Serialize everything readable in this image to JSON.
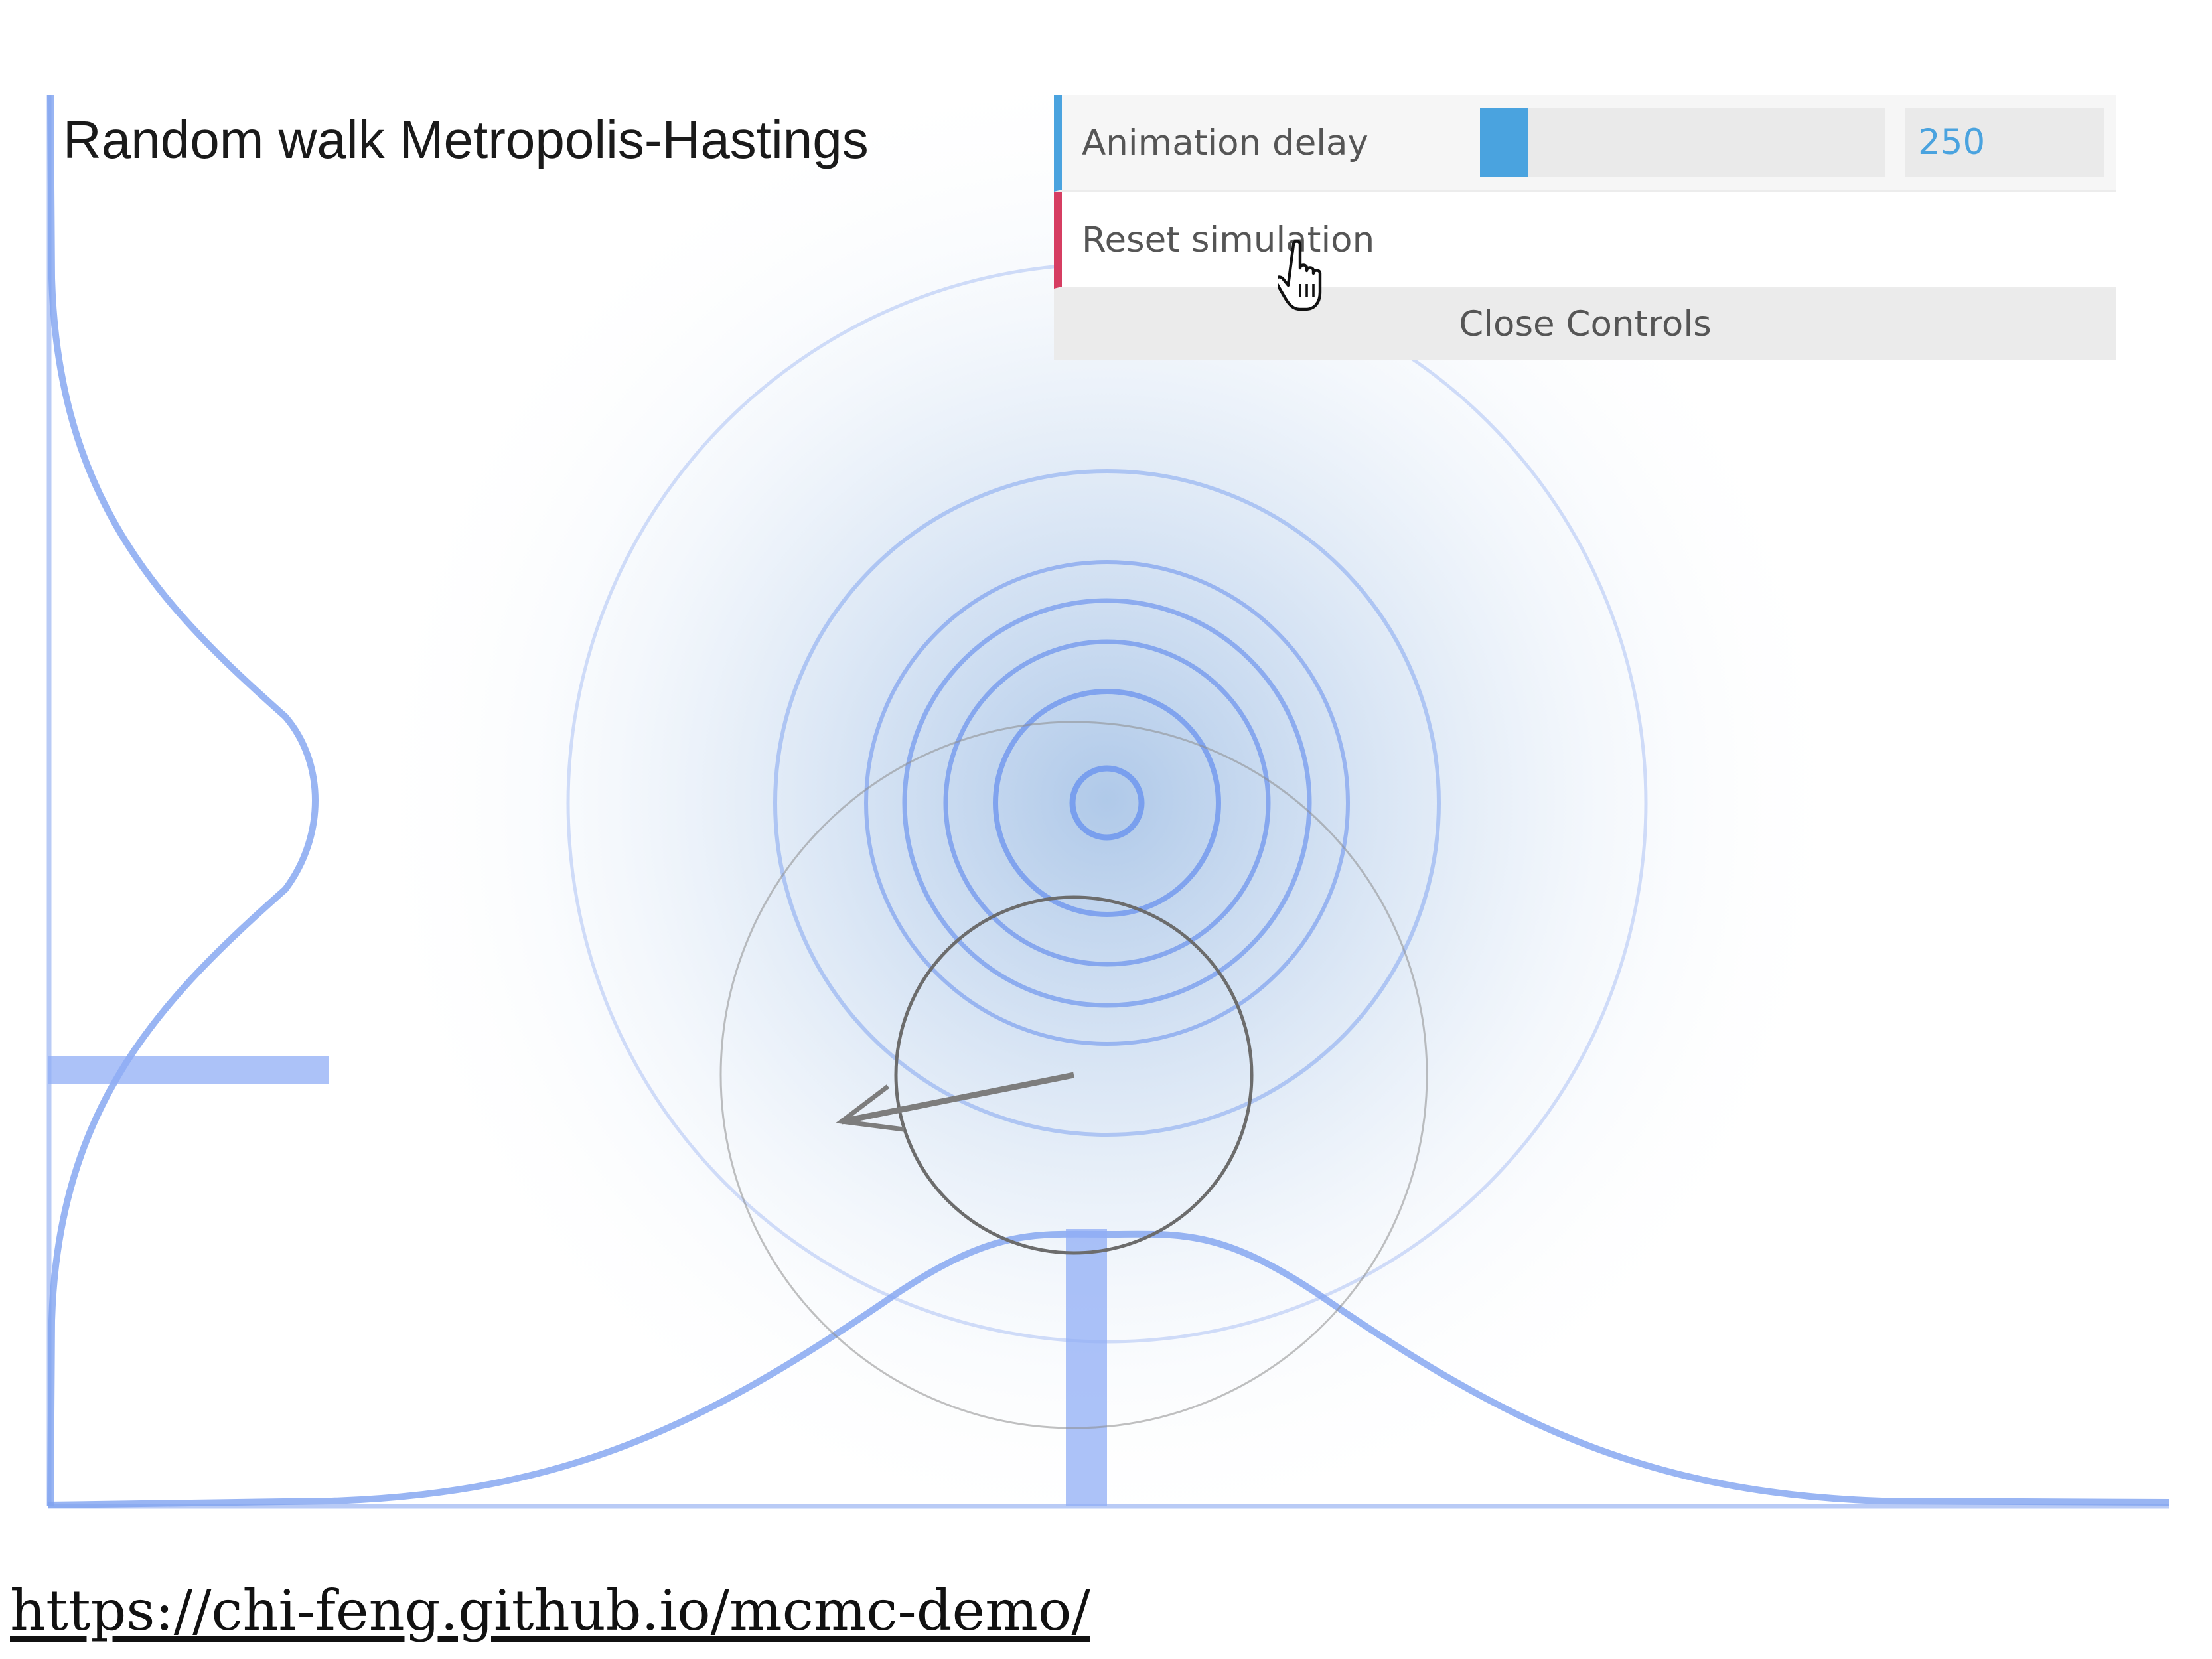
{
  "simulation": {
    "title": "Random walk Metropolis-Hastings"
  },
  "controls": {
    "animation_delay_label": "Animation delay",
    "animation_delay_value": "250",
    "animation_delay_fill_fraction": 0.12,
    "reset_label": "Reset simulation",
    "close_label": "Close Controls"
  },
  "colors": {
    "accent_blue": "#4aa3df",
    "reset_red": "#d63d62",
    "curve_blue": "#6f96ee",
    "glow_blue": "#5a8fd1"
  },
  "icons": {
    "cursor": "pointer-hand-icon"
  },
  "footer": {
    "url_text": "https://chi-feng.github.io/mcmc-demo/"
  }
}
